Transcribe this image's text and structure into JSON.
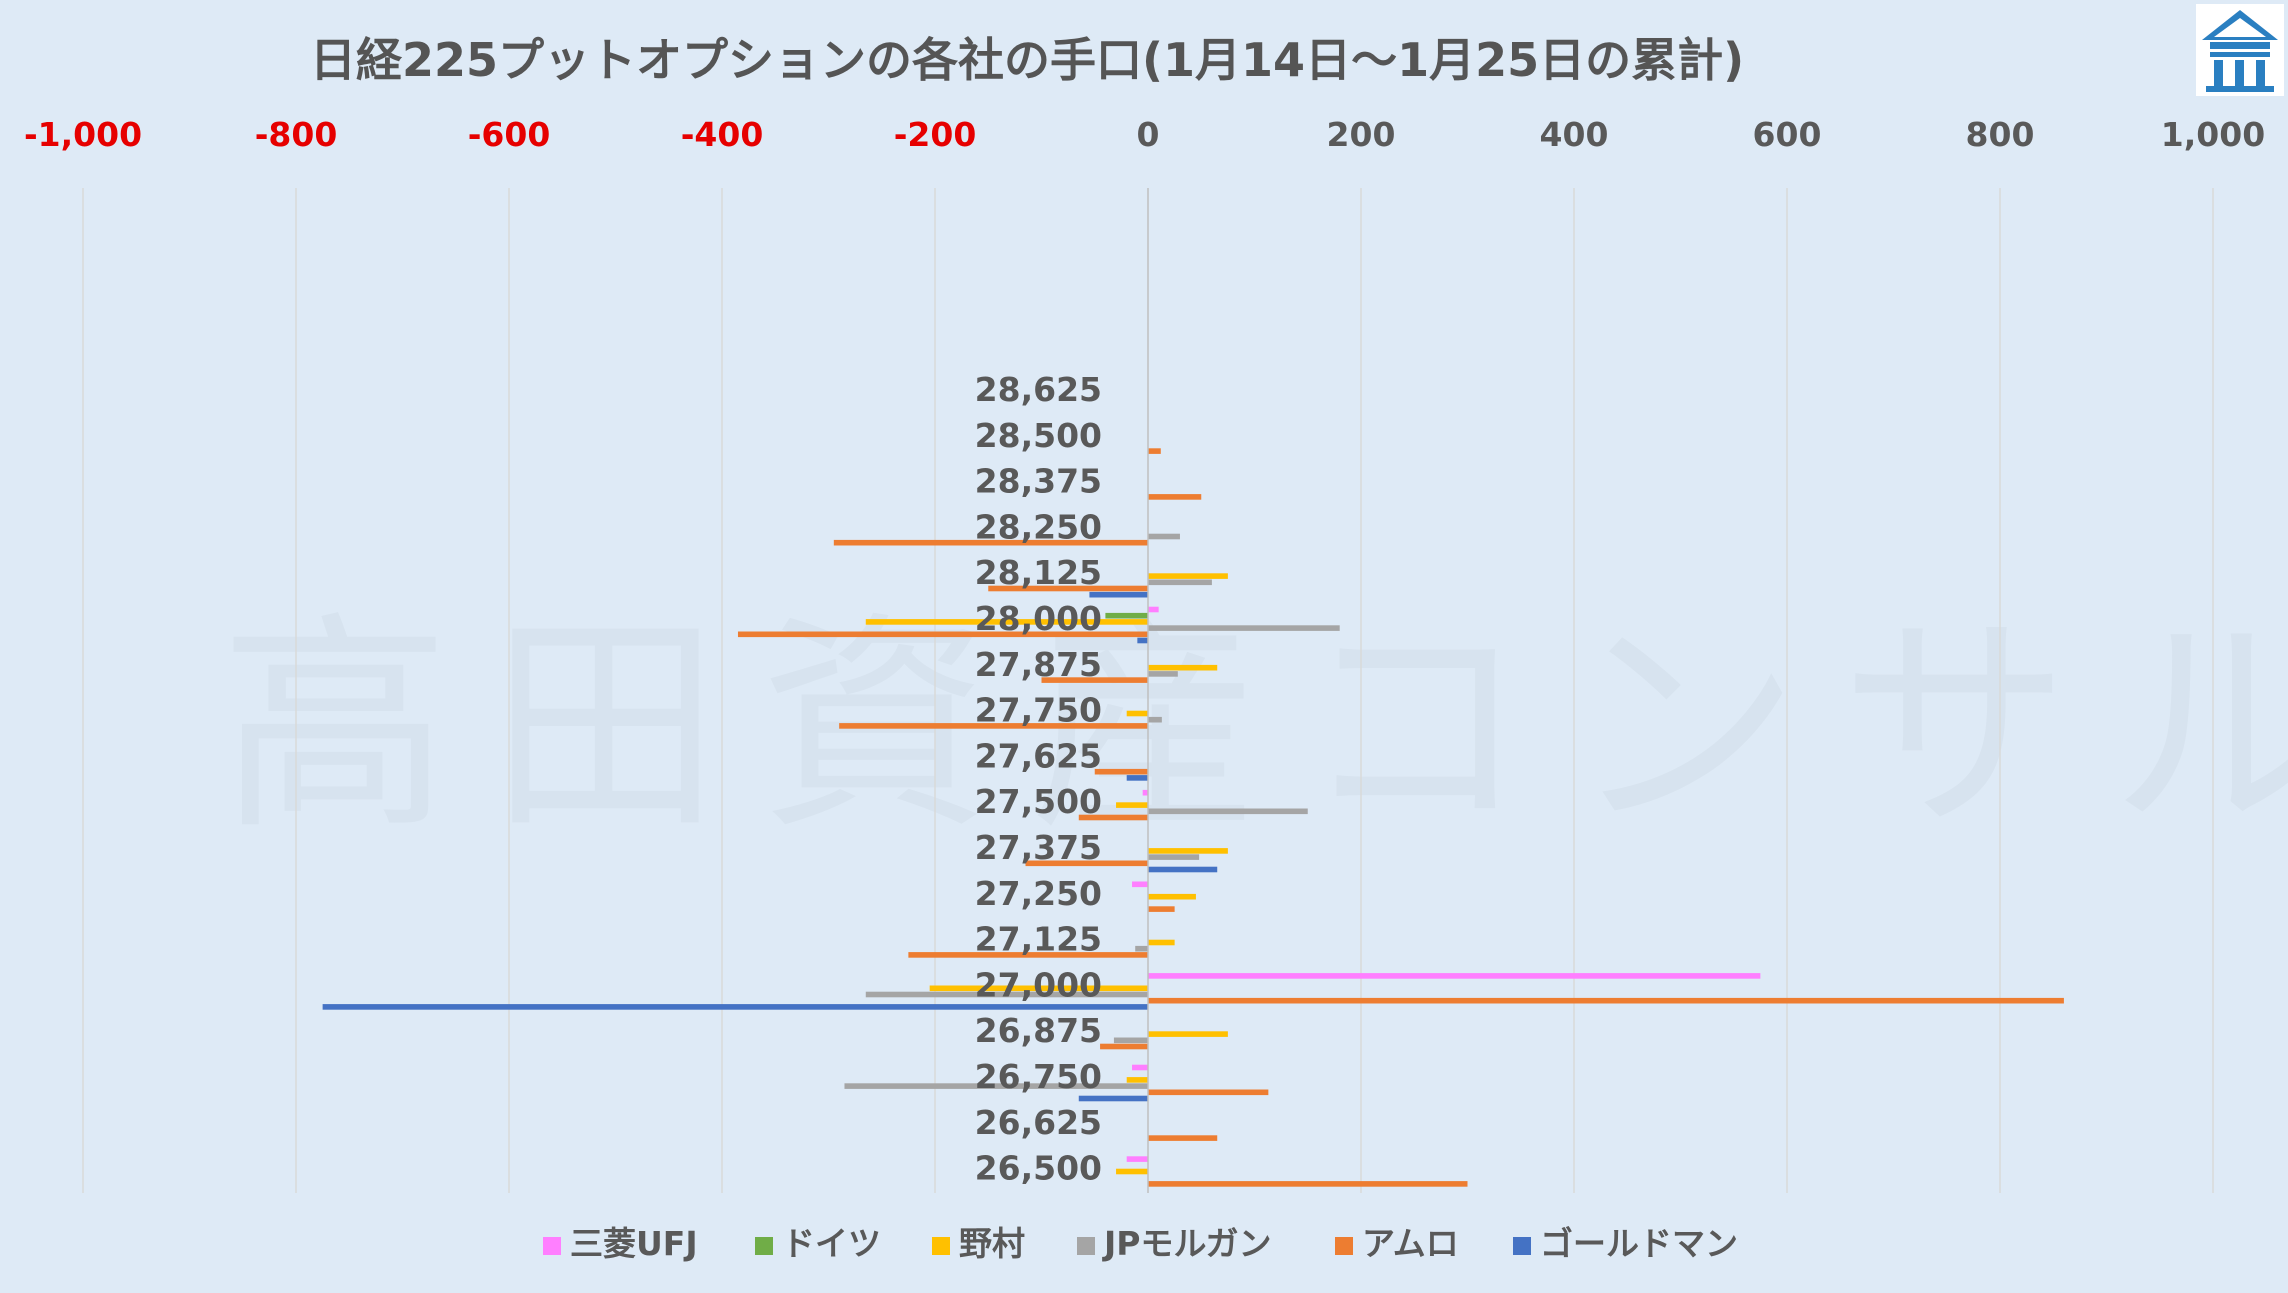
{
  "chart_data": {
    "type": "bar",
    "orientation": "horizontal",
    "title": "日経225プットオプションの各社の手口(1月14日～1月25日の累計)",
    "watermark": "高田資産コンサル",
    "xlim": [
      -1000,
      1000
    ],
    "x_ticks": [
      -1000,
      -800,
      -600,
      -400,
      -200,
      0,
      200,
      400,
      600,
      800,
      1000
    ],
    "x_tick_labels": [
      "-1,000",
      "-800",
      "-600",
      "-400",
      "-200",
      "0",
      "200",
      "400",
      "600",
      "800",
      "1,000"
    ],
    "negative_tick_color": "#e60000",
    "positive_tick_color": "#595959",
    "axis_position": "top",
    "grid": true,
    "legend_position": "bottom",
    "categories": [
      "28,625",
      "28,500",
      "28,375",
      "28,250",
      "28,125",
      "28,000",
      "27,875",
      "27,750",
      "27,625",
      "27,500",
      "27,375",
      "27,250",
      "27,125",
      "27,000",
      "26,875",
      "26,750",
      "26,625",
      "26,500"
    ],
    "series": [
      {
        "name": "三菱UFJ",
        "color": "#ff7fff",
        "values": [
          0,
          0,
          0,
          0,
          0,
          10,
          0,
          0,
          0,
          -5,
          0,
          -15,
          0,
          575,
          0,
          -15,
          0,
          -20
        ]
      },
      {
        "name": "ドイツ",
        "color": "#70ad47",
        "values": [
          0,
          0,
          0,
          0,
          0,
          -40,
          0,
          0,
          0,
          0,
          0,
          0,
          0,
          0,
          0,
          0,
          0,
          0
        ]
      },
      {
        "name": "野村",
        "color": "#ffc000",
        "values": [
          0,
          0,
          0,
          0,
          75,
          -265,
          65,
          -20,
          0,
          -30,
          75,
          45,
          25,
          -205,
          75,
          -20,
          0,
          -30
        ]
      },
      {
        "name": "JPモルガン",
        "color": "#a5a5a5",
        "values": [
          0,
          0,
          0,
          30,
          60,
          180,
          28,
          13,
          0,
          150,
          48,
          0,
          -12,
          -265,
          -32,
          -285,
          0,
          0
        ]
      },
      {
        "name": "アムロ",
        "color": "#ed7d31",
        "values": [
          0,
          12,
          50,
          -295,
          -150,
          -385,
          -100,
          -290,
          -50,
          -65,
          -115,
          25,
          -225,
          860,
          -45,
          113,
          65,
          300
        ]
      },
      {
        "name": "ゴールドマン",
        "color": "#4472c4",
        "values": [
          0,
          0,
          0,
          0,
          -55,
          -10,
          0,
          0,
          -20,
          0,
          65,
          0,
          0,
          -775,
          0,
          -65,
          0,
          0
        ]
      }
    ]
  }
}
